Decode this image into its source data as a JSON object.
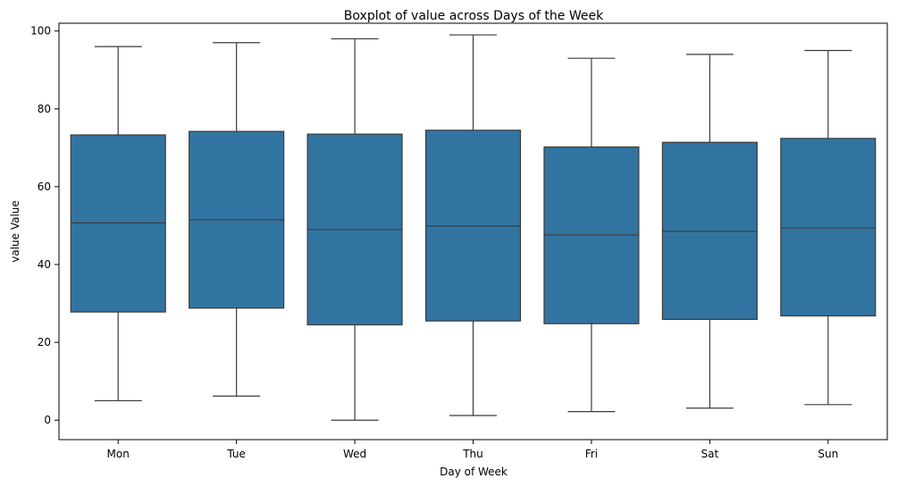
{
  "chart_data": {
    "type": "box",
    "title": "Boxplot of value across Days of the Week",
    "xlabel": "Day of Week",
    "ylabel": "value Value",
    "ylim": [
      -5,
      102
    ],
    "yticks": [
      0,
      20,
      40,
      60,
      80,
      100
    ],
    "grid": false,
    "box_color": "#3274a1",
    "line_color": "#3b3b3b",
    "categories": [
      "Mon",
      "Tue",
      "Wed",
      "Thu",
      "Fri",
      "Sat",
      "Sun"
    ],
    "boxes": [
      {
        "category": "Mon",
        "min": 5,
        "q1": 27.8,
        "median": 50.7,
        "q3": 73.3,
        "max": 96
      },
      {
        "category": "Tue",
        "min": 6.2,
        "q1": 28.8,
        "median": 51.5,
        "q3": 74.2,
        "max": 97
      },
      {
        "category": "Wed",
        "min": 0,
        "q1": 24.5,
        "median": 49,
        "q3": 73.5,
        "max": 98
      },
      {
        "category": "Thu",
        "min": 1.2,
        "q1": 25.5,
        "median": 49.9,
        "q3": 74.5,
        "max": 99
      },
      {
        "category": "Fri",
        "min": 2.2,
        "q1": 24.8,
        "median": 47.6,
        "q3": 70.2,
        "max": 93
      },
      {
        "category": "Sat",
        "min": 3.1,
        "q1": 25.9,
        "median": 48.5,
        "q3": 71.4,
        "max": 94
      },
      {
        "category": "Sun",
        "min": 4,
        "q1": 26.8,
        "median": 49.4,
        "q3": 72.4,
        "max": 95
      }
    ]
  }
}
